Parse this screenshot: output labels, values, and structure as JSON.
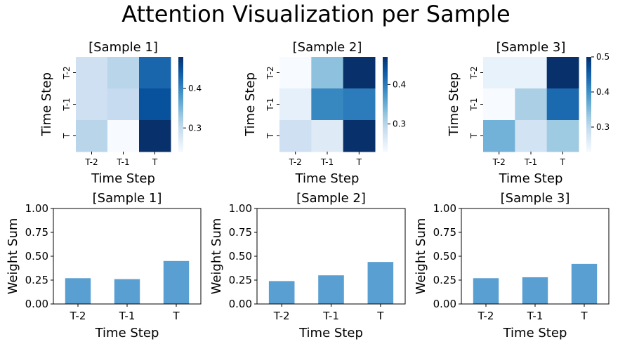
{
  "figure": {
    "title": "Attention Visualization per Sample"
  },
  "colors": {
    "bar": "#5a9fd2",
    "cmap_low": "#f7fbff",
    "cmap_high": "#08306b"
  },
  "chart_data": [
    {
      "type": "heatmap",
      "title": "[Sample 1]",
      "xlabel": "Time Step",
      "ylabel": "Time Step",
      "x_categories": [
        "T-2",
        "T-1",
        "T"
      ],
      "y_categories": [
        "T-2",
        "T-1",
        "T"
      ],
      "values": [
        [
          0.29,
          0.31,
          0.43
        ],
        [
          0.29,
          0.3,
          0.45
        ],
        [
          0.31,
          0.24,
          0.48
        ]
      ],
      "colorbar": {
        "range": [
          0.24,
          0.48
        ],
        "ticks": [
          "0.3",
          "0.4"
        ],
        "tick_values": [
          0.3,
          0.4
        ]
      }
    },
    {
      "type": "heatmap",
      "title": "[Sample 2]",
      "xlabel": "Time Step",
      "ylabel": "Time Step",
      "x_categories": [
        "T-2",
        "T-1",
        "T"
      ],
      "y_categories": [
        "T-2",
        "T-1",
        "T"
      ],
      "values": [
        [
          0.23,
          0.33,
          0.47
        ],
        [
          0.25,
          0.39,
          0.4
        ],
        [
          0.28,
          0.26,
          0.47
        ]
      ],
      "colorbar": {
        "range": [
          0.23,
          0.47
        ],
        "ticks": [
          "0.3",
          "0.4"
        ],
        "tick_values": [
          0.3,
          0.4
        ]
      }
    },
    {
      "type": "heatmap",
      "title": "[Sample 3]",
      "xlabel": "Time Step",
      "ylabel": "Time Step",
      "x_categories": [
        "T-2",
        "T-1",
        "T"
      ],
      "y_categories": [
        "T-2",
        "T-1",
        "T"
      ],
      "values": [
        [
          0.25,
          0.25,
          0.5
        ],
        [
          0.23,
          0.32,
          0.44
        ],
        [
          0.36,
          0.28,
          0.33
        ]
      ],
      "colorbar": {
        "range": [
          0.23,
          0.5
        ],
        "ticks": [
          "0.3",
          "0.4",
          "0.5"
        ],
        "tick_values": [
          0.3,
          0.4,
          0.5
        ]
      }
    },
    {
      "type": "bar",
      "title": "[Sample 1]",
      "xlabel": "Time Step",
      "ylabel": "Weight Sum",
      "categories": [
        "T-2",
        "T-1",
        "T"
      ],
      "values": [
        0.27,
        0.26,
        0.45
      ],
      "ylim": [
        0,
        1
      ],
      "yticks": [
        "0.00",
        "0.25",
        "0.50",
        "0.75",
        "1.00"
      ]
    },
    {
      "type": "bar",
      "title": "[Sample 2]",
      "xlabel": "Time Step",
      "ylabel": "Weight Sum",
      "categories": [
        "T-2",
        "T-1",
        "T"
      ],
      "values": [
        0.24,
        0.3,
        0.44
      ],
      "ylim": [
        0,
        1
      ],
      "yticks": [
        "0.00",
        "0.25",
        "0.50",
        "0.75",
        "1.00"
      ]
    },
    {
      "type": "bar",
      "title": "[Sample 3]",
      "xlabel": "Time Step",
      "ylabel": "Weight Sum",
      "categories": [
        "T-2",
        "T-1",
        "T"
      ],
      "values": [
        0.27,
        0.28,
        0.42
      ],
      "ylim": [
        0,
        1
      ],
      "yticks": [
        "0.00",
        "0.25",
        "0.50",
        "0.75",
        "1.00"
      ]
    }
  ]
}
